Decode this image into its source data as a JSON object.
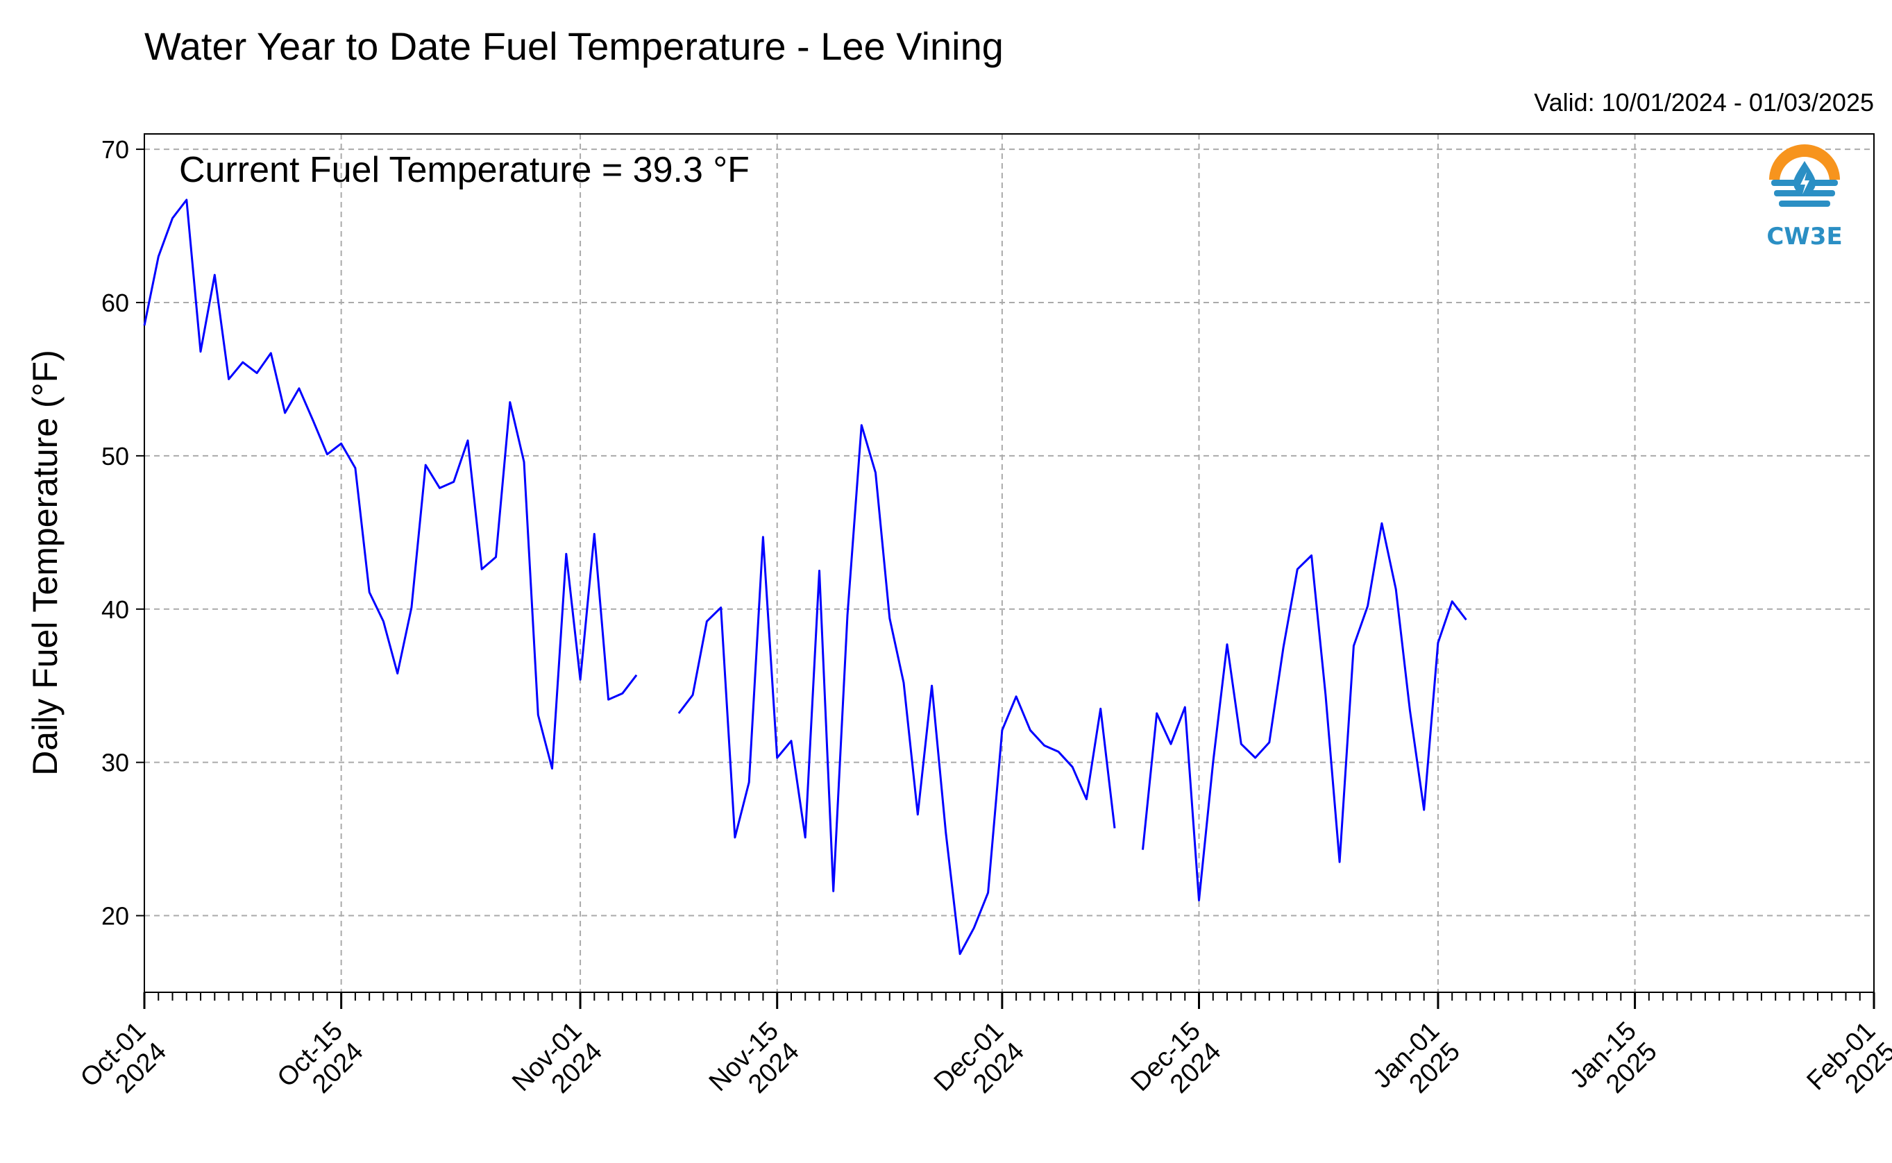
{
  "title": "Water Year to Date Fuel Temperature - Lee Vining",
  "valid_text": "Valid: 10/01/2024 - 01/03/2025",
  "annotation": "Current Fuel Temperature = 39.3 °F",
  "logo": {
    "text": "CW3E",
    "icon": "cw3e-logo-icon",
    "color": "#2b8fc4",
    "accent": "#f7941d"
  },
  "line_color": "#0000ff",
  "chart_data": {
    "type": "line",
    "title": "Water Year to Date Fuel Temperature - Lee Vining",
    "xlabel": "",
    "ylabel": "Daily Fuel Temperature (°F)",
    "x_start": "2024-10-01",
    "xlim": [
      "2024-10-01",
      "2025-02-01"
    ],
    "ylim": [
      15,
      71
    ],
    "yticks": [
      20,
      30,
      40,
      50,
      60,
      70
    ],
    "xticks": [
      {
        "date": "2024-10-01",
        "label": [
          "Oct-01",
          "2024"
        ]
      },
      {
        "date": "2024-10-15",
        "label": [
          "Oct-15",
          "2024"
        ]
      },
      {
        "date": "2024-11-01",
        "label": [
          "Nov-01",
          "2024"
        ]
      },
      {
        "date": "2024-11-15",
        "label": [
          "Nov-15",
          "2024"
        ]
      },
      {
        "date": "2024-12-01",
        "label": [
          "Dec-01",
          "2024"
        ]
      },
      {
        "date": "2024-12-15",
        "label": [
          "Dec-15",
          "2024"
        ]
      },
      {
        "date": "2025-01-01",
        "label": [
          "Jan-01",
          "2025"
        ]
      },
      {
        "date": "2025-01-15",
        "label": [
          "Jan-15",
          "2025"
        ]
      },
      {
        "date": "2025-02-01",
        "label": [
          "Feb-01",
          "2025"
        ]
      }
    ],
    "grid": true,
    "series": [
      {
        "values": [
          58.5,
          63.0,
          65.5,
          66.7,
          56.8,
          61.8,
          55.0,
          56.1,
          55.4,
          56.7,
          52.8,
          54.4,
          52.3,
          50.1,
          50.8,
          49.2,
          41.1,
          39.2,
          35.8,
          40.1,
          49.4,
          47.9,
          48.3,
          51.0,
          42.6,
          43.4,
          53.5,
          49.6,
          33.1,
          29.6,
          43.6,
          35.4,
          44.9,
          34.1,
          34.5,
          35.7,
          null,
          null,
          33.2,
          34.4,
          39.2,
          40.1,
          25.1,
          28.7,
          44.7,
          30.3,
          31.4,
          25.1,
          42.5,
          21.6,
          39.6,
          52.0,
          48.9,
          39.4,
          35.2,
          26.6,
          35.0,
          25.4,
          17.5,
          19.2,
          21.5,
          32.1,
          34.3,
          32.1,
          31.1,
          30.7,
          29.7,
          27.6,
          33.5,
          25.7,
          null,
          24.3,
          33.2,
          31.2,
          33.6,
          21.0,
          30.0,
          37.7,
          31.2,
          30.3,
          31.3,
          37.5,
          42.6,
          43.5,
          34.4,
          23.5,
          37.6,
          40.2,
          45.6,
          41.3,
          33.4,
          26.9,
          37.8,
          40.5,
          39.3
        ]
      }
    ]
  }
}
